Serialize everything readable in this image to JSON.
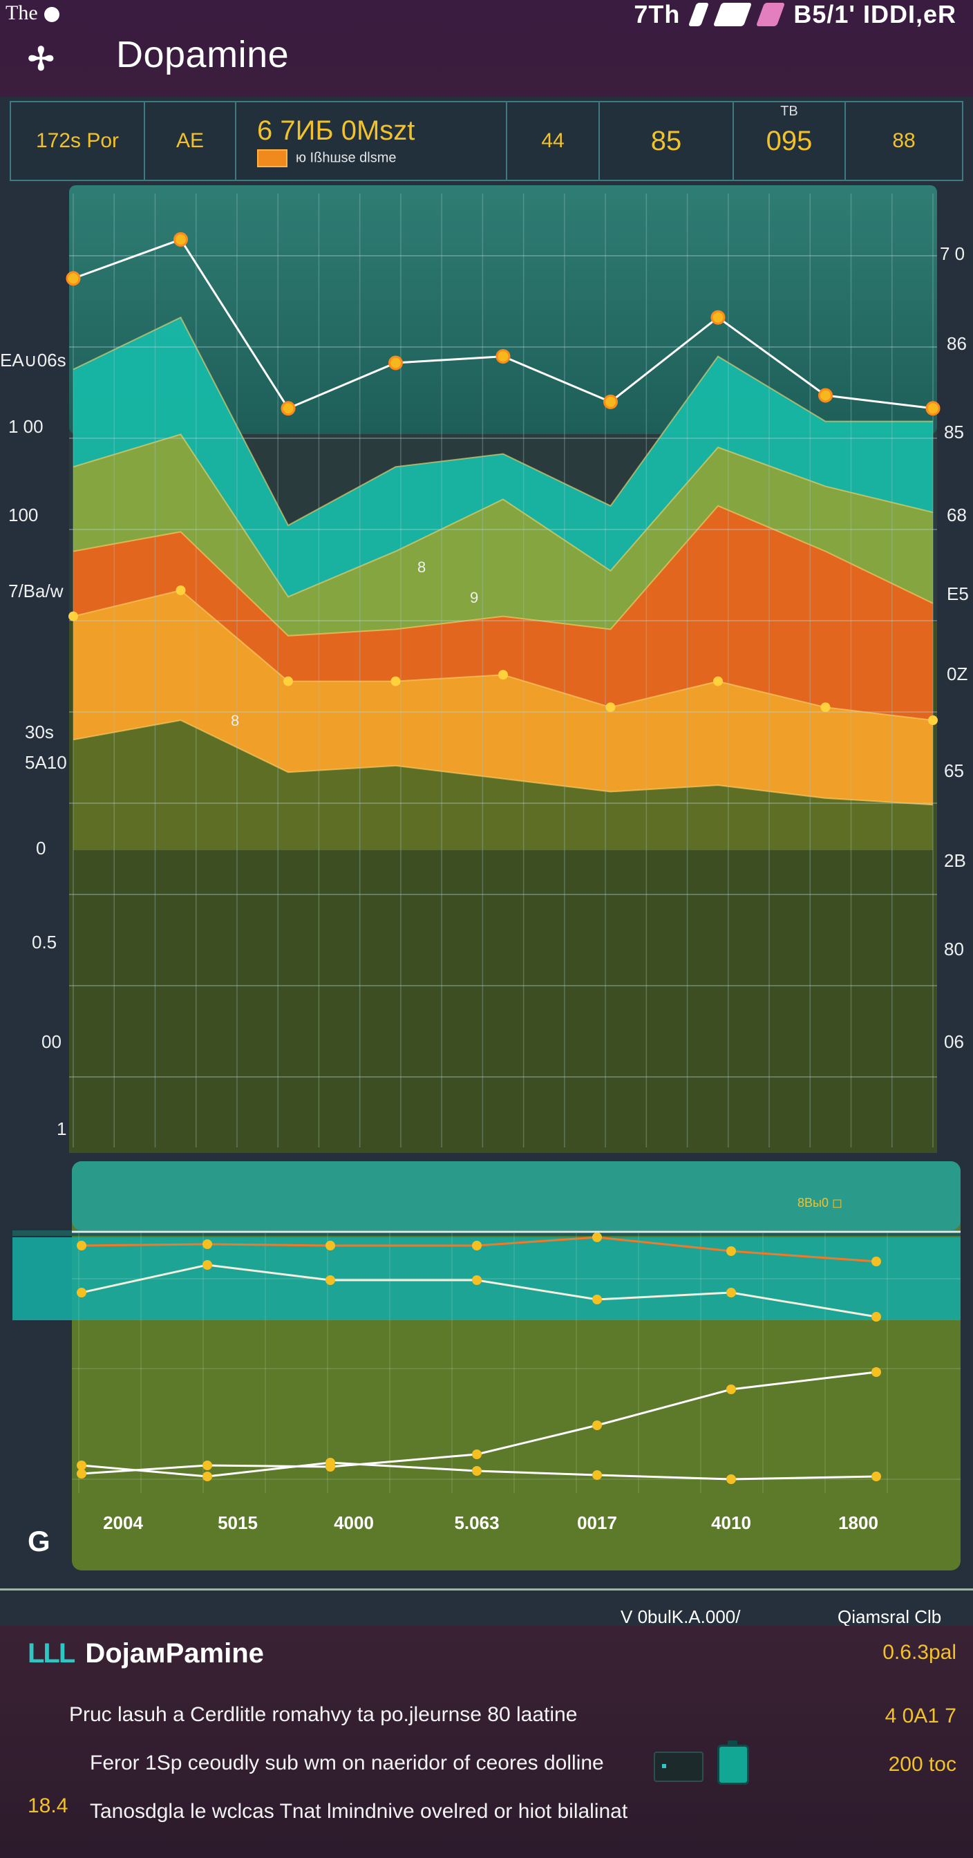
{
  "top_bar": {
    "corner_label": "The",
    "right_text": "7Th",
    "right_text_2": "B5/1ʹ ΙDDΙ,eR",
    "title": "Dopamine",
    "logo_glyph": "✢"
  },
  "stats": {
    "cells": [
      {
        "value": "172s Por"
      },
      {
        "value": "AE"
      },
      {
        "value": "6 7ИБ 0Мszt",
        "legend": "ю Ißhшse dlsme"
      },
      {
        "value": "44"
      },
      {
        "value": "85"
      },
      {
        "value": "095",
        "sub": "TB"
      },
      {
        "value": "88"
      }
    ]
  },
  "main_chart": {
    "left_labels": [
      "EA∪06s",
      "1 00",
      "100",
      "7/Ba/w",
      "30s",
      "5A10",
      "0",
      "0.5",
      "00",
      "1"
    ],
    "right_labels": [
      "7 0",
      "86",
      "85",
      "68",
      "E5",
      "0Z",
      "65",
      "2B",
      "80",
      "06"
    ],
    "inner_labels": [
      "8",
      "8",
      "9"
    ]
  },
  "chart_data": {
    "type": "area",
    "title": "",
    "xlabel": "",
    "ylabel": "",
    "series": [
      {
        "values": [
          7.4,
          8.2,
          5.0,
          5.9,
          6.1,
          5.3,
          7.6,
          6.6,
          6.6
        ]
      },
      {
        "values": [
          5.9,
          6.4,
          3.9,
          4.6,
          5.4,
          4.3,
          6.2,
          5.6,
          5.2
        ]
      },
      {
        "values": [
          4.6,
          4.9,
          3.3,
          3.4,
          3.6,
          3.4,
          5.3,
          4.6,
          3.8
        ]
      },
      {
        "values": [
          3.6,
          4.0,
          2.6,
          2.6,
          2.7,
          2.2,
          2.6,
          2.2,
          2.0
        ]
      },
      {
        "values": [
          1.7,
          2.0,
          1.2,
          1.3,
          1.1,
          0.9,
          1.0,
          0.8,
          0.7
        ]
      }
    ],
    "line": [
      8.8,
      9.4,
      6.8,
      7.5,
      7.6,
      6.9,
      8.2,
      7.0,
      6.8
    ]
  },
  "second_chart": {
    "x_labels": [
      "2004",
      "5015",
      "4000",
      "5.063",
      "0017",
      "4010",
      "1800"
    ],
    "badge": "G",
    "tag": "8Вы0 ◻"
  },
  "panel": {
    "header_left": "V 0bulK.A.000/",
    "header_right": "Qiamsral Clb",
    "title_prefix": "LLL",
    "title": "DojaмPamine",
    "title_value": "0.6.3pal",
    "line1": "Pruc lasuh a Cerdlitle romahvy ta po.jleurnse  80 laatine",
    "line1_value": "4 0A1 7",
    "line2": "Feror 1Sp ceoudly sub wm on naeridor of ceores dolline",
    "line2_value": "200 toc",
    "line3": "Tanosdgla le wclcas Tnat lmindnive ovelred or hiot bilalinat",
    "index": "18.4"
  },
  "colors": {
    "teal": "#18b8a6",
    "lime": "#8aa43a",
    "orange": "#e8621c",
    "amber": "#f0a22a",
    "olive": "#556b24",
    "accent": "#f2c22c"
  }
}
